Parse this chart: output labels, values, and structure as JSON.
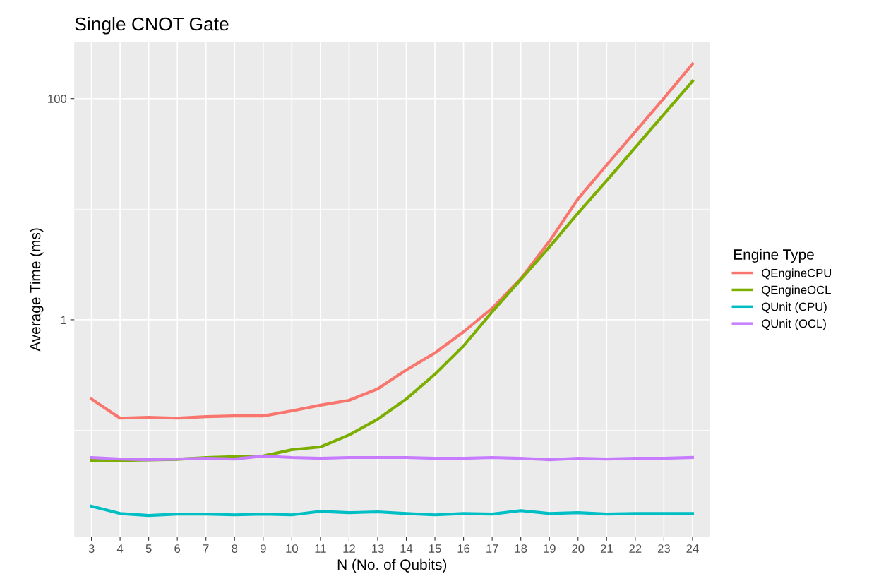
{
  "chart_data": {
    "type": "line",
    "title": "Single CNOT Gate",
    "xlabel": "N (No. of Qubits)",
    "ylabel": "Average Time (ms)",
    "legend_title": "Engine Type",
    "categories": [
      "3",
      "4",
      "5",
      "6",
      "7",
      "8",
      "9",
      "10",
      "11",
      "12",
      "13",
      "14",
      "15",
      "16",
      "17",
      "18",
      "19",
      "20",
      "21",
      "22",
      "23",
      "24"
    ],
    "series": [
      {
        "name": "QEngineCPU",
        "color": "#f8766d",
        "values": [
          0.192,
          0.129,
          0.131,
          0.129,
          0.133,
          0.135,
          0.135,
          0.15,
          0.169,
          0.187,
          0.237,
          0.352,
          0.501,
          0.778,
          1.27,
          2.35,
          5.12,
          12.4,
          25.1,
          50.1,
          101,
          206
        ]
      },
      {
        "name": "QEngineOCL",
        "color": "#7cae00",
        "values": [
          0.0535,
          0.0535,
          0.054,
          0.0547,
          0.0568,
          0.0577,
          0.0586,
          0.0668,
          0.0708,
          0.0908,
          0.126,
          0.192,
          0.322,
          0.58,
          1.18,
          2.31,
          4.55,
          9.22,
          18.1,
          36.2,
          72.3,
          144
        ]
      },
      {
        "name": "QUnit (CPU)",
        "color": "#00bfc4",
        "values": [
          0.0206,
          0.0177,
          0.017,
          0.0175,
          0.0175,
          0.0172,
          0.0175,
          0.0172,
          0.0185,
          0.018,
          0.0183,
          0.0177,
          0.0172,
          0.0177,
          0.0175,
          0.0188,
          0.0177,
          0.018,
          0.0175,
          0.0177,
          0.0177,
          0.0177
        ]
      },
      {
        "name": "QUnit (OCL)",
        "color": "#c77cff",
        "values": [
          0.0568,
          0.0551,
          0.0543,
          0.0551,
          0.0559,
          0.0551,
          0.0585,
          0.0568,
          0.0559,
          0.0568,
          0.0568,
          0.0568,
          0.0559,
          0.0559,
          0.0568,
          0.0559,
          0.0543,
          0.0559,
          0.0551,
          0.0559,
          0.0559,
          0.0568
        ]
      }
    ],
    "log": true,
    "ylim": [
      0.0109,
      324
    ],
    "yticks": [
      {
        "value": 0.1,
        "label": null
      },
      {
        "value": 1,
        "label": "1"
      },
      {
        "value": 10,
        "label": null
      },
      100
    ],
    "grid": true,
    "legend": "right",
    "marker": "none",
    "line_style": "solid"
  }
}
